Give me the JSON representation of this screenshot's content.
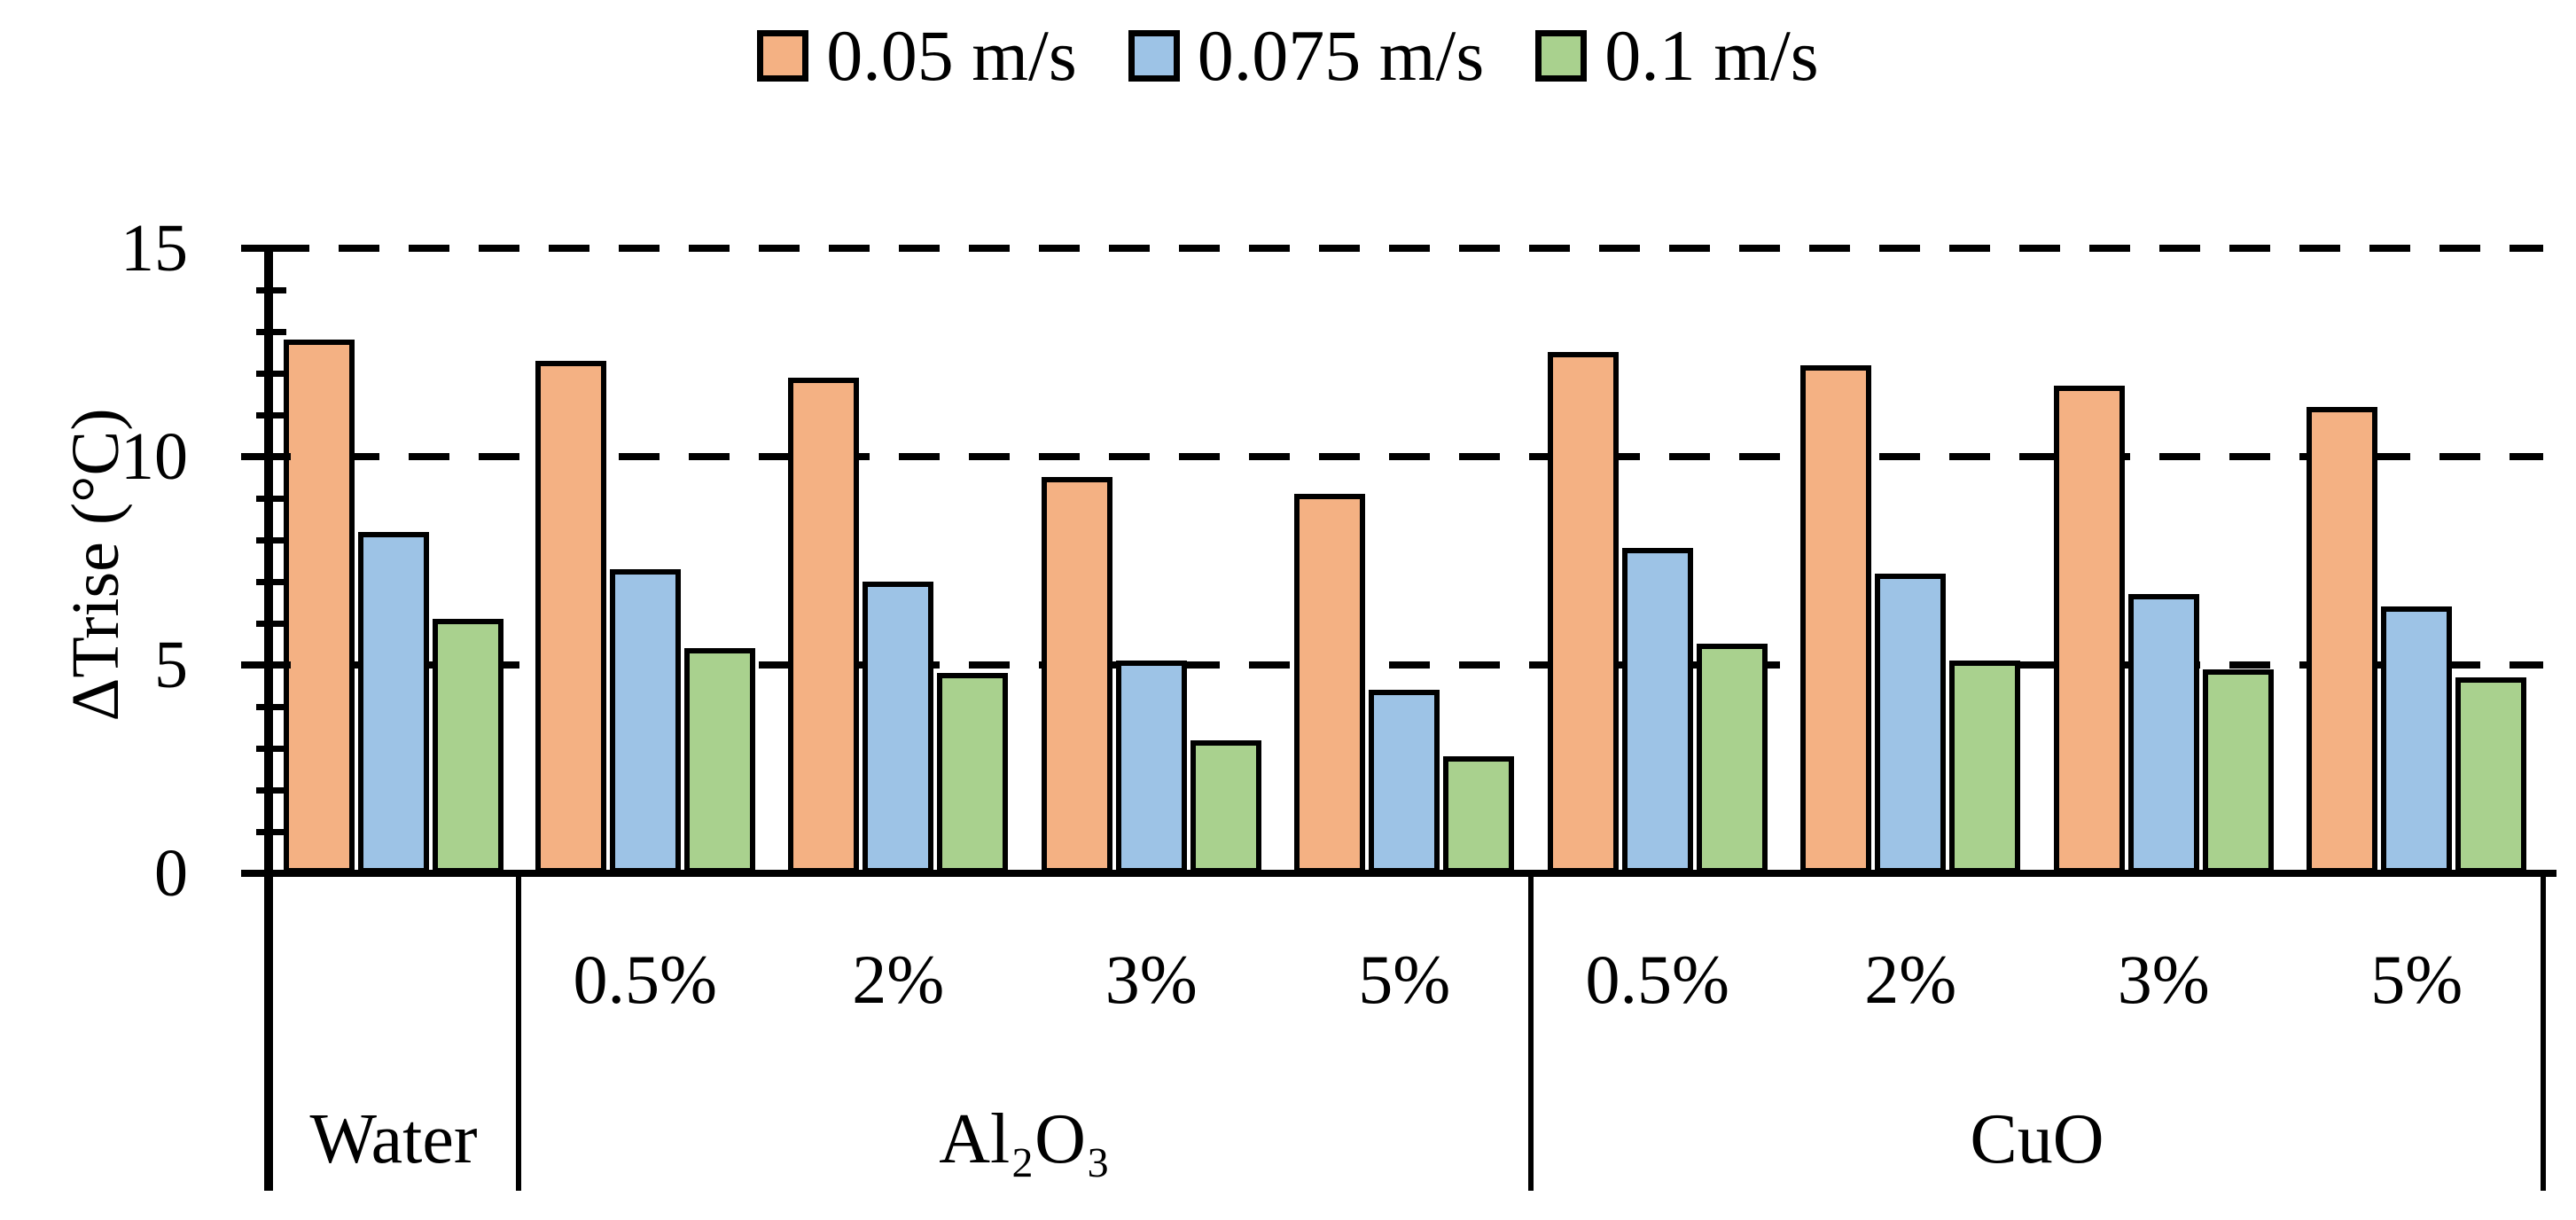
{
  "figure": {
    "background": "#ffffff",
    "text_color": "#000000"
  },
  "chart_data": {
    "type": "bar",
    "title": "",
    "ylabel": "ΔTrise (°C)",
    "xlabel": "",
    "ylim": [
      0,
      15
    ],
    "yticks": [
      0,
      5,
      10,
      15
    ],
    "minor_tick_step": 1,
    "gridline_values": [
      5,
      10,
      15
    ],
    "gridline_style": "dashed",
    "grid": true,
    "legend_position": "top-center",
    "categories": [
      "",
      "0.5%",
      "2%",
      "3%",
      "5%",
      "0.5%",
      "2%",
      "3%",
      "5%"
    ],
    "group_spans": [
      {
        "label": "Water",
        "from": 0,
        "to": 0
      },
      {
        "label": "Al₂O₃",
        "from": 1,
        "to": 4
      },
      {
        "label": "CuO",
        "from": 5,
        "to": 8
      }
    ],
    "series": [
      {
        "name": "0.05 m/s",
        "color": "#F4B183",
        "values": [
          12.8,
          12.3,
          11.9,
          9.5,
          9.1,
          12.5,
          12.2,
          11.7,
          11.2
        ]
      },
      {
        "name": "0.075 m/s",
        "color": "#9DC3E6",
        "values": [
          8.2,
          7.3,
          7.0,
          5.1,
          4.4,
          7.8,
          7.2,
          6.7,
          6.4
        ]
      },
      {
        "name": "0.1 m/s",
        "color": "#A9D18E",
        "values": [
          6.1,
          5.4,
          4.8,
          3.2,
          2.8,
          5.5,
          5.1,
          4.9,
          4.7
        ]
      }
    ],
    "bar_border_color": "#000000"
  }
}
